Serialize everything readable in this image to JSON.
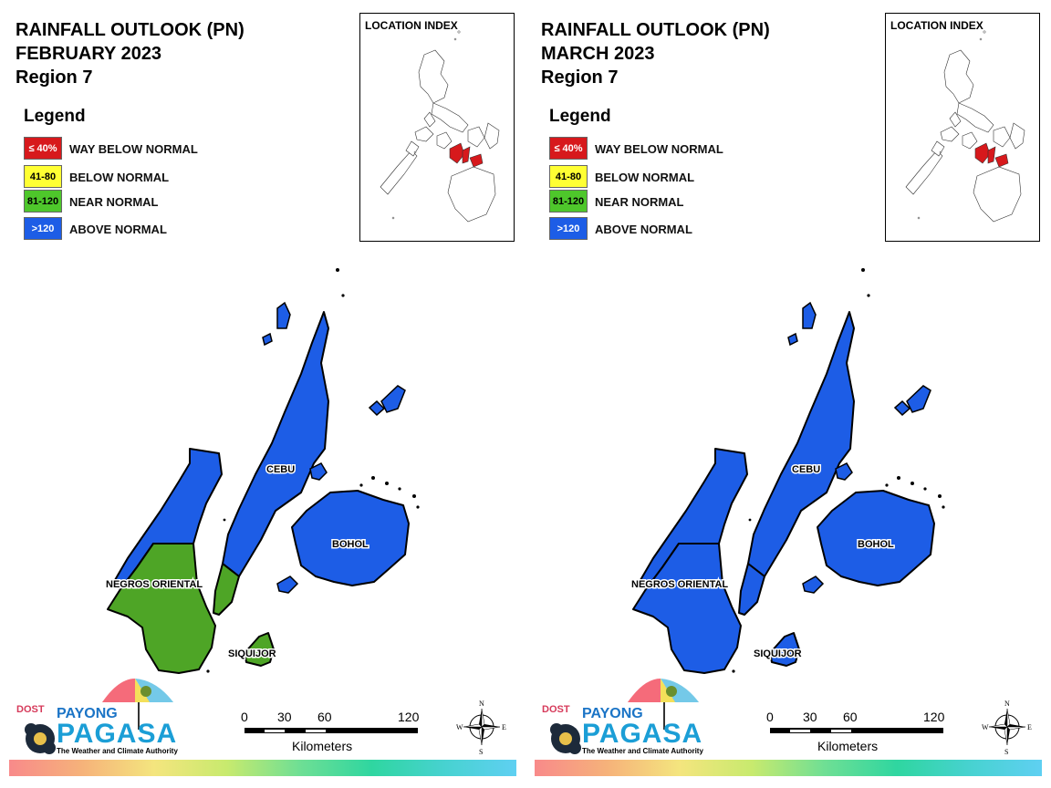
{
  "panels": [
    {
      "title_line1": "RAINFALL OUTLOOK (PN)",
      "title_line2": "FEBRUARY 2023",
      "title_line3": "Region 7",
      "provinces": {
        "negros_north": "#1d5de6",
        "negros_south": "#4ea526",
        "cebu_north": "#1d5de6",
        "cebu_south": "#4ea526",
        "bohol": "#1d5de6",
        "siquijor": "#4ea526"
      }
    },
    {
      "title_line1": "RAINFALL OUTLOOK (PN)",
      "title_line2": "MARCH 2023",
      "title_line3": "Region 7",
      "provinces": {
        "negros_north": "#1d5de6",
        "negros_south": "#1d5de6",
        "cebu_north": "#1d5de6",
        "cebu_south": "#1d5de6",
        "bohol": "#1d5de6",
        "siquijor": "#1d5de6"
      }
    }
  ],
  "legend": {
    "title": "Legend",
    "items": [
      {
        "swatch": "≤ 40%",
        "label": "WAY BELOW NORMAL",
        "color": "#d7191c",
        "text_color": "#ffffff"
      },
      {
        "swatch": "41-80",
        "label": "BELOW NORMAL",
        "color": "#ffff33",
        "text_color": "#000000"
      },
      {
        "swatch": "81-120",
        "label": "NEAR NORMAL",
        "color": "#4ec72b",
        "text_color": "#000000"
      },
      {
        "swatch": ">120",
        "label": "ABOVE NORMAL",
        "color": "#1d5de6",
        "text_color": "#ffffff"
      }
    ]
  },
  "location_index": {
    "title": "LOCATION INDEX"
  },
  "map_labels": {
    "cebu": "CEBU",
    "bohol": "BOHOL",
    "negros": "NEGROS ORIENTAL",
    "siquijor": "SIQUIJOR"
  },
  "scale_bar": {
    "ticks": [
      "0",
      "30",
      "60",
      "120"
    ],
    "unit": "Kilometers"
  },
  "compass": {
    "n": "N",
    "e": "E",
    "s": "S",
    "w": "W"
  },
  "logo": {
    "dost": "DOST",
    "payong": "PAYONG",
    "pagasa": "PAGASA",
    "tagline": "The Weather and Climate Authority"
  }
}
